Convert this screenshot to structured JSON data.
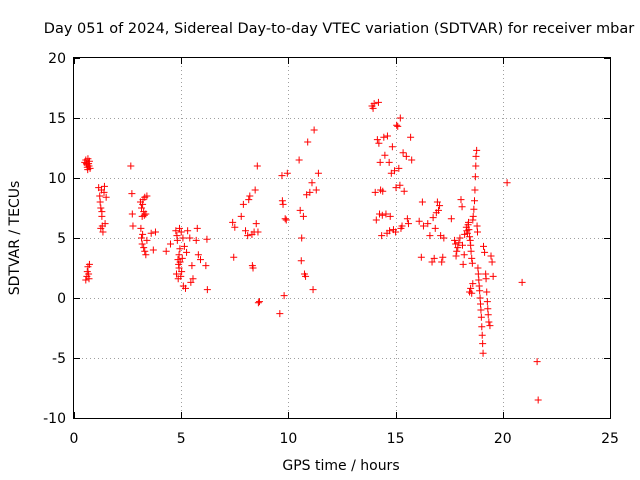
{
  "chart_data": {
    "type": "scatter",
    "title": "Day 051 of 2024, Sidereal Day-to-day VTEC variation (SDTVAR) for receiver mbar",
    "xlabel": "GPS time / hours",
    "ylabel": "SDTVAR / TECUs",
    "xlim": [
      0,
      25
    ],
    "ylim": [
      -10,
      20
    ],
    "xticks": [
      0,
      5,
      10,
      15,
      20,
      25
    ],
    "yticks": [
      -10,
      -5,
      0,
      5,
      10,
      15,
      20
    ],
    "xtick_labels": [
      "0",
      "5",
      "10",
      "15",
      "20",
      "25"
    ],
    "ytick_labels": [
      "-10",
      "-5",
      "0",
      "5",
      "10",
      "15",
      "20"
    ],
    "grid": true,
    "marker": "+",
    "marker_color": "#ff0000",
    "series": [
      {
        "name": "SDTVAR",
        "points": [
          [
            0.5,
            11.3
          ],
          [
            0.55,
            11.5
          ],
          [
            0.6,
            11.1
          ],
          [
            0.62,
            10.9
          ],
          [
            0.65,
            11.6
          ],
          [
            0.68,
            11.2
          ],
          [
            0.7,
            11.0
          ],
          [
            0.72,
            11.4
          ],
          [
            0.75,
            10.8
          ],
          [
            0.58,
            11.2
          ],
          [
            0.64,
            10.7
          ],
          [
            0.55,
            1.5
          ],
          [
            0.6,
            1.8
          ],
          [
            0.62,
            2.2
          ],
          [
            0.65,
            2.6
          ],
          [
            0.68,
            2.0
          ],
          [
            0.7,
            1.6
          ],
          [
            0.72,
            2.8
          ],
          [
            1.15,
            9.2
          ],
          [
            1.2,
            8.5
          ],
          [
            1.22,
            8.0
          ],
          [
            1.25,
            7.5
          ],
          [
            1.28,
            9.0
          ],
          [
            1.3,
            6.8
          ],
          [
            1.32,
            6.0
          ],
          [
            1.35,
            5.5
          ],
          [
            1.4,
            8.8
          ],
          [
            1.42,
            9.3
          ],
          [
            1.45,
            6.2
          ],
          [
            1.5,
            8.4
          ],
          [
            1.25,
            5.8
          ],
          [
            1.3,
            7.2
          ],
          [
            2.65,
            11.0
          ],
          [
            2.7,
            8.7
          ],
          [
            2.72,
            7.0
          ],
          [
            2.75,
            6.0
          ],
          [
            3.1,
            8.0
          ],
          [
            3.15,
            7.5
          ],
          [
            3.18,
            6.8
          ],
          [
            3.2,
            7.8
          ],
          [
            3.22,
            8.2
          ],
          [
            3.25,
            7.2
          ],
          [
            3.28,
            6.9
          ],
          [
            3.3,
            8.4
          ],
          [
            3.35,
            7.0
          ],
          [
            3.4,
            8.5
          ],
          [
            3.12,
            5.8
          ],
          [
            3.15,
            5.0
          ],
          [
            3.18,
            4.5
          ],
          [
            3.2,
            5.3
          ],
          [
            3.25,
            4.2
          ],
          [
            3.3,
            3.9
          ],
          [
            3.35,
            3.6
          ],
          [
            3.4,
            4.8
          ],
          [
            3.6,
            5.4
          ],
          [
            3.8,
            5.5
          ],
          [
            3.7,
            4.0
          ],
          [
            4.3,
            3.9
          ],
          [
            4.5,
            4.5
          ],
          [
            4.75,
            5.6
          ],
          [
            4.8,
            5.2
          ],
          [
            4.82,
            4.8
          ],
          [
            4.85,
            3.2
          ],
          [
            4.88,
            2.8
          ],
          [
            4.9,
            2.5
          ],
          [
            4.92,
            5.8
          ],
          [
            4.95,
            3.0
          ],
          [
            4.98,
            1.8
          ],
          [
            5.0,
            5.5
          ],
          [
            5.02,
            2.2
          ],
          [
            5.05,
            3.3
          ],
          [
            5.08,
            5.0
          ],
          [
            4.78,
            2.0
          ],
          [
            4.86,
            1.6
          ],
          [
            4.9,
            3.6
          ],
          [
            4.94,
            4.1
          ],
          [
            5.1,
            1.0
          ],
          [
            5.2,
            0.8
          ],
          [
            5.15,
            4.3
          ],
          [
            5.25,
            3.8
          ],
          [
            5.3,
            5.6
          ],
          [
            5.4,
            5.0
          ],
          [
            5.5,
            2.7
          ],
          [
            5.45,
            1.3
          ],
          [
            5.55,
            1.6
          ],
          [
            5.7,
            4.8
          ],
          [
            5.75,
            5.8
          ],
          [
            5.8,
            3.6
          ],
          [
            5.9,
            3.2
          ],
          [
            6.15,
            2.7
          ],
          [
            6.2,
            4.9
          ],
          [
            6.22,
            0.7
          ],
          [
            7.4,
            6.3
          ],
          [
            7.45,
            3.4
          ],
          [
            7.5,
            5.9
          ],
          [
            7.8,
            6.8
          ],
          [
            7.9,
            7.8
          ],
          [
            8.0,
            5.6
          ],
          [
            8.1,
            5.2
          ],
          [
            8.15,
            8.2
          ],
          [
            8.2,
            8.5
          ],
          [
            8.3,
            5.3
          ],
          [
            8.32,
            2.7
          ],
          [
            8.35,
            2.5
          ],
          [
            8.4,
            5.5
          ],
          [
            8.45,
            9.0
          ],
          [
            8.5,
            6.2
          ],
          [
            8.55,
            11.0
          ],
          [
            8.6,
            -0.4
          ],
          [
            8.65,
            -0.3
          ],
          [
            8.58,
            5.5
          ],
          [
            9.6,
            -1.3
          ],
          [
            9.7,
            10.2
          ],
          [
            9.72,
            8.1
          ],
          [
            9.75,
            7.8
          ],
          [
            9.8,
            0.2
          ],
          [
            9.85,
            6.6
          ],
          [
            9.9,
            6.5
          ],
          [
            9.95,
            10.4
          ],
          [
            10.5,
            11.5
          ],
          [
            10.55,
            7.3
          ],
          [
            10.6,
            3.1
          ],
          [
            10.62,
            5.0
          ],
          [
            10.7,
            6.8
          ],
          [
            10.75,
            2.0
          ],
          [
            10.8,
            1.8
          ],
          [
            10.85,
            8.6
          ],
          [
            10.9,
            13.0
          ],
          [
            11.0,
            8.8
          ],
          [
            11.1,
            9.6
          ],
          [
            11.15,
            0.7
          ],
          [
            11.2,
            14.0
          ],
          [
            11.3,
            9.0
          ],
          [
            11.4,
            10.4
          ],
          [
            13.9,
            16.0
          ],
          [
            13.95,
            15.8
          ],
          [
            14.0,
            16.2
          ],
          [
            14.05,
            8.8
          ],
          [
            14.1,
            6.5
          ],
          [
            14.15,
            13.2
          ],
          [
            14.2,
            16.3
          ],
          [
            14.22,
            12.9
          ],
          [
            14.25,
            7.0
          ],
          [
            14.28,
            11.3
          ],
          [
            14.3,
            9.0
          ],
          [
            14.35,
            5.2
          ],
          [
            14.38,
            6.9
          ],
          [
            14.4,
            8.9
          ],
          [
            14.45,
            13.4
          ],
          [
            14.5,
            11.9
          ],
          [
            14.55,
            7.0
          ],
          [
            14.6,
            5.4
          ],
          [
            14.62,
            13.5
          ],
          [
            14.7,
            11.3
          ],
          [
            14.72,
            5.6
          ],
          [
            14.75,
            6.8
          ],
          [
            14.8,
            10.4
          ],
          [
            14.85,
            12.6
          ],
          [
            14.9,
            5.7
          ],
          [
            14.95,
            10.6
          ],
          [
            15.0,
            5.5
          ],
          [
            15.02,
            9.2
          ],
          [
            15.05,
            14.4
          ],
          [
            15.1,
            14.3
          ],
          [
            15.15,
            10.8
          ],
          [
            15.2,
            9.4
          ],
          [
            15.22,
            15.0
          ],
          [
            15.25,
            5.8
          ],
          [
            15.3,
            6.0
          ],
          [
            15.35,
            12.1
          ],
          [
            15.4,
            8.9
          ],
          [
            15.5,
            11.8
          ],
          [
            15.55,
            6.6
          ],
          [
            15.6,
            6.2
          ],
          [
            15.7,
            13.4
          ],
          [
            15.75,
            11.5
          ],
          [
            16.1,
            6.4
          ],
          [
            16.2,
            3.4
          ],
          [
            16.25,
            8.0
          ],
          [
            16.3,
            6.0
          ],
          [
            16.5,
            6.2
          ],
          [
            16.6,
            5.2
          ],
          [
            16.7,
            3.0
          ],
          [
            16.75,
            6.7
          ],
          [
            16.8,
            3.3
          ],
          [
            16.85,
            5.8
          ],
          [
            16.9,
            7.1
          ],
          [
            16.95,
            8.0
          ],
          [
            17.0,
            7.3
          ],
          [
            17.05,
            7.7
          ],
          [
            17.1,
            5.2
          ],
          [
            17.15,
            3.0
          ],
          [
            17.2,
            3.4
          ],
          [
            17.25,
            5.0
          ],
          [
            17.6,
            6.6
          ],
          [
            17.75,
            4.8
          ],
          [
            17.8,
            4.5
          ],
          [
            17.82,
            3.5
          ],
          [
            17.85,
            3.9
          ],
          [
            17.9,
            4.2
          ],
          [
            17.95,
            4.6
          ],
          [
            18.0,
            5.0
          ],
          [
            18.05,
            8.2
          ],
          [
            18.1,
            7.6
          ],
          [
            18.12,
            4.4
          ],
          [
            18.15,
            2.8
          ],
          [
            18.2,
            3.6
          ],
          [
            18.22,
            5.3
          ],
          [
            18.3,
            5.9
          ],
          [
            18.32,
            5.6
          ],
          [
            18.35,
            5.4
          ],
          [
            18.38,
            6.1
          ],
          [
            18.4,
            6.3
          ],
          [
            18.42,
            5.7
          ],
          [
            18.45,
            5.1
          ],
          [
            18.48,
            4.8
          ],
          [
            18.5,
            4.4
          ],
          [
            18.52,
            3.9
          ],
          [
            18.55,
            3.3
          ],
          [
            18.58,
            2.9
          ],
          [
            18.6,
            6.5
          ],
          [
            18.62,
            6.8
          ],
          [
            18.65,
            7.4
          ],
          [
            18.68,
            8.1
          ],
          [
            18.7,
            9.0
          ],
          [
            18.72,
            10.1
          ],
          [
            18.74,
            11.0
          ],
          [
            18.75,
            11.8
          ],
          [
            18.78,
            12.3
          ],
          [
            18.8,
            6.0
          ],
          [
            18.82,
            5.5
          ],
          [
            18.84,
            2.5
          ],
          [
            18.86,
            2.0
          ],
          [
            18.88,
            1.5
          ],
          [
            18.9,
            1.0
          ],
          [
            18.92,
            0.6
          ],
          [
            18.94,
            0.0
          ],
          [
            18.96,
            -0.5
          ],
          [
            18.98,
            -1.0
          ],
          [
            19.0,
            -1.6
          ],
          [
            19.02,
            -2.4
          ],
          [
            19.04,
            -3.1
          ],
          [
            19.06,
            -3.8
          ],
          [
            19.08,
            -4.6
          ],
          [
            18.5,
            0.8
          ],
          [
            18.45,
            0.5
          ],
          [
            18.55,
            0.4
          ],
          [
            18.6,
            1.2
          ],
          [
            19.1,
            4.3
          ],
          [
            19.15,
            3.8
          ],
          [
            19.2,
            2.0
          ],
          [
            19.22,
            1.6
          ],
          [
            19.25,
            0.5
          ],
          [
            19.28,
            -0.3
          ],
          [
            19.3,
            -0.9
          ],
          [
            19.32,
            -1.4
          ],
          [
            19.35,
            -2.0
          ],
          [
            19.4,
            -2.3
          ],
          [
            19.45,
            3.5
          ],
          [
            19.5,
            3.0
          ],
          [
            19.55,
            1.8
          ],
          [
            20.2,
            9.6
          ],
          [
            20.9,
            1.3
          ],
          [
            21.6,
            -5.3
          ],
          [
            21.65,
            -8.5
          ]
        ]
      }
    ]
  }
}
